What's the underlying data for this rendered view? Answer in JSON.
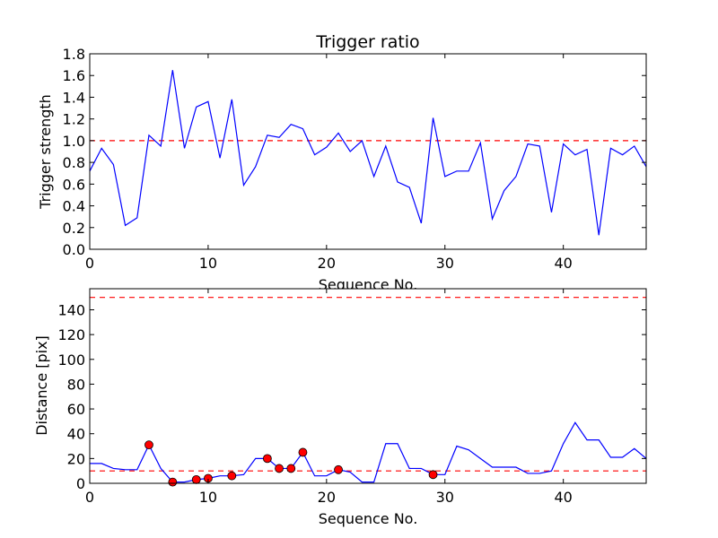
{
  "chart_data": [
    {
      "type": "line",
      "title": "Trigger ratio",
      "xlabel": "Sequence No.",
      "ylabel": "Trigger strength",
      "xlim": [
        0,
        47
      ],
      "ylim": [
        0,
        1.8
      ],
      "xticks": [
        0,
        10,
        20,
        30,
        40
      ],
      "yticks": [
        0.0,
        0.2,
        0.4,
        0.6,
        0.8,
        1.0,
        1.2,
        1.4,
        1.6,
        1.8
      ],
      "xtick_labels": [
        "0",
        "10",
        "20",
        "30",
        "40"
      ],
      "ytick_labels": [
        "0.0",
        "0.2",
        "0.4",
        "0.6",
        "0.8",
        "1.0",
        "1.2",
        "1.4",
        "1.6",
        "1.8"
      ],
      "colors": {
        "line": "#0000ff",
        "reference": "#ff0000"
      },
      "reference_lines": [
        1.0
      ],
      "series": [
        {
          "name": "trigger strength",
          "x": [
            0,
            1,
            2,
            3,
            4,
            5,
            6,
            7,
            8,
            9,
            10,
            11,
            12,
            13,
            14,
            15,
            16,
            17,
            18,
            19,
            20,
            21,
            22,
            23,
            24,
            25,
            26,
            27,
            28,
            29,
            30,
            31,
            32,
            33,
            34,
            35,
            36,
            37,
            38,
            39,
            40,
            41,
            42,
            43,
            44,
            45,
            46,
            47
          ],
          "values": [
            0.72,
            0.93,
            0.78,
            0.22,
            0.29,
            1.05,
            0.95,
            1.65,
            0.93,
            1.31,
            1.36,
            0.84,
            1.38,
            0.59,
            0.76,
            1.05,
            1.03,
            1.15,
            1.11,
            0.87,
            0.94,
            1.07,
            0.9,
            1.0,
            0.67,
            0.95,
            0.62,
            0.57,
            0.24,
            1.21,
            0.67,
            0.72,
            0.72,
            0.98,
            0.28,
            0.54,
            0.67,
            0.97,
            0.95,
            0.34,
            0.97,
            0.87,
            0.92,
            0.13,
            0.93,
            0.87,
            0.95,
            0.76
          ]
        }
      ]
    },
    {
      "type": "line",
      "title": "",
      "xlabel": "Sequence No.",
      "ylabel": "Distance [pix]",
      "xlim": [
        0,
        47
      ],
      "ylim": [
        0,
        157
      ],
      "xticks": [
        0,
        10,
        20,
        30,
        40
      ],
      "yticks": [
        0,
        20,
        40,
        60,
        80,
        100,
        120,
        140
      ],
      "xtick_labels": [
        "0",
        "10",
        "20",
        "30",
        "40"
      ],
      "ytick_labels": [
        "0",
        "20",
        "40",
        "60",
        "80",
        "100",
        "120",
        "140"
      ],
      "colors": {
        "line": "#0000ff",
        "reference": "#ff0000",
        "marker": "#ff0000"
      },
      "reference_lines": [
        10,
        150
      ],
      "series": [
        {
          "name": "distance",
          "x": [
            0,
            1,
            2,
            3,
            4,
            5,
            6,
            7,
            8,
            9,
            10,
            11,
            12,
            13,
            14,
            15,
            16,
            17,
            18,
            19,
            20,
            21,
            22,
            23,
            24,
            25,
            26,
            27,
            28,
            29,
            30,
            31,
            32,
            33,
            34,
            35,
            36,
            37,
            38,
            39,
            40,
            41,
            42,
            43,
            44,
            45,
            46,
            47
          ],
          "values": [
            16,
            16,
            12,
            11,
            11,
            31,
            12,
            1,
            1,
            3,
            4,
            6,
            6,
            7,
            20,
            20,
            12,
            12,
            25,
            6,
            6,
            11,
            9,
            1,
            1,
            32,
            32,
            12,
            12,
            7,
            7,
            30,
            27,
            20,
            13,
            13,
            13,
            8,
            8,
            10,
            32,
            49,
            35,
            35,
            21,
            21,
            28,
            20
          ]
        },
        {
          "name": "highlighted points",
          "x": [
            5,
            7,
            9,
            10,
            12,
            15,
            16,
            17,
            18,
            21,
            29
          ],
          "values": [
            31,
            1,
            3,
            4,
            6,
            20,
            12,
            12,
            25,
            11,
            7
          ]
        }
      ]
    }
  ]
}
